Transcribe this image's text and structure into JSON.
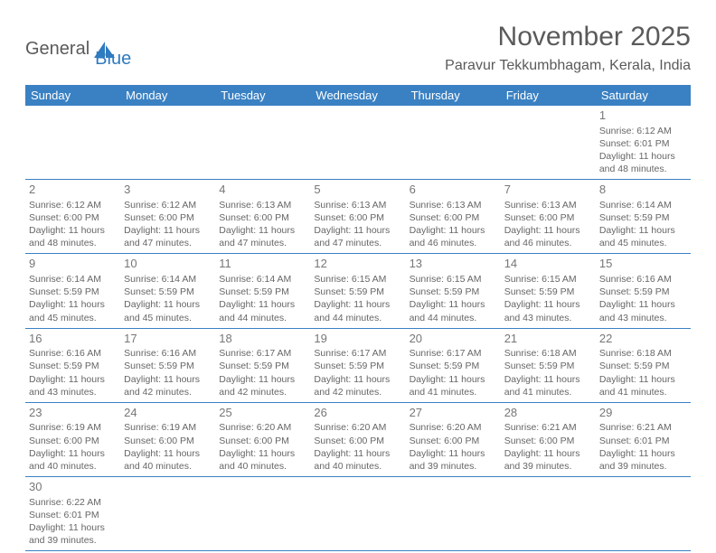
{
  "logo": {
    "part1": "General",
    "part2": "Blue"
  },
  "title": "November 2025",
  "location": "Paravur Tekkumbhagam, Kerala, India",
  "colors": {
    "header_bg": "#3a81c3",
    "header_text": "#ffffff",
    "border": "#3a81c3",
    "body_text": "#666666",
    "title_text": "#5a5a5a",
    "logo_accent": "#2f7bbf"
  },
  "weekdays": [
    "Sunday",
    "Monday",
    "Tuesday",
    "Wednesday",
    "Thursday",
    "Friday",
    "Saturday"
  ],
  "labels": {
    "sunrise": "Sunrise:",
    "sunset": "Sunset:",
    "daylight": "Daylight:"
  },
  "weeks": [
    [
      null,
      null,
      null,
      null,
      null,
      null,
      {
        "d": "1",
        "sr": "6:12 AM",
        "ss": "6:01 PM",
        "dl": "11 hours and 48 minutes."
      }
    ],
    [
      {
        "d": "2",
        "sr": "6:12 AM",
        "ss": "6:00 PM",
        "dl": "11 hours and 48 minutes."
      },
      {
        "d": "3",
        "sr": "6:12 AM",
        "ss": "6:00 PM",
        "dl": "11 hours and 47 minutes."
      },
      {
        "d": "4",
        "sr": "6:13 AM",
        "ss": "6:00 PM",
        "dl": "11 hours and 47 minutes."
      },
      {
        "d": "5",
        "sr": "6:13 AM",
        "ss": "6:00 PM",
        "dl": "11 hours and 47 minutes."
      },
      {
        "d": "6",
        "sr": "6:13 AM",
        "ss": "6:00 PM",
        "dl": "11 hours and 46 minutes."
      },
      {
        "d": "7",
        "sr": "6:13 AM",
        "ss": "6:00 PM",
        "dl": "11 hours and 46 minutes."
      },
      {
        "d": "8",
        "sr": "6:14 AM",
        "ss": "5:59 PM",
        "dl": "11 hours and 45 minutes."
      }
    ],
    [
      {
        "d": "9",
        "sr": "6:14 AM",
        "ss": "5:59 PM",
        "dl": "11 hours and 45 minutes."
      },
      {
        "d": "10",
        "sr": "6:14 AM",
        "ss": "5:59 PM",
        "dl": "11 hours and 45 minutes."
      },
      {
        "d": "11",
        "sr": "6:14 AM",
        "ss": "5:59 PM",
        "dl": "11 hours and 44 minutes."
      },
      {
        "d": "12",
        "sr": "6:15 AM",
        "ss": "5:59 PM",
        "dl": "11 hours and 44 minutes."
      },
      {
        "d": "13",
        "sr": "6:15 AM",
        "ss": "5:59 PM",
        "dl": "11 hours and 44 minutes."
      },
      {
        "d": "14",
        "sr": "6:15 AM",
        "ss": "5:59 PM",
        "dl": "11 hours and 43 minutes."
      },
      {
        "d": "15",
        "sr": "6:16 AM",
        "ss": "5:59 PM",
        "dl": "11 hours and 43 minutes."
      }
    ],
    [
      {
        "d": "16",
        "sr": "6:16 AM",
        "ss": "5:59 PM",
        "dl": "11 hours and 43 minutes."
      },
      {
        "d": "17",
        "sr": "6:16 AM",
        "ss": "5:59 PM",
        "dl": "11 hours and 42 minutes."
      },
      {
        "d": "18",
        "sr": "6:17 AM",
        "ss": "5:59 PM",
        "dl": "11 hours and 42 minutes."
      },
      {
        "d": "19",
        "sr": "6:17 AM",
        "ss": "5:59 PM",
        "dl": "11 hours and 42 minutes."
      },
      {
        "d": "20",
        "sr": "6:17 AM",
        "ss": "5:59 PM",
        "dl": "11 hours and 41 minutes."
      },
      {
        "d": "21",
        "sr": "6:18 AM",
        "ss": "5:59 PM",
        "dl": "11 hours and 41 minutes."
      },
      {
        "d": "22",
        "sr": "6:18 AM",
        "ss": "5:59 PM",
        "dl": "11 hours and 41 minutes."
      }
    ],
    [
      {
        "d": "23",
        "sr": "6:19 AM",
        "ss": "6:00 PM",
        "dl": "11 hours and 40 minutes."
      },
      {
        "d": "24",
        "sr": "6:19 AM",
        "ss": "6:00 PM",
        "dl": "11 hours and 40 minutes."
      },
      {
        "d": "25",
        "sr": "6:20 AM",
        "ss": "6:00 PM",
        "dl": "11 hours and 40 minutes."
      },
      {
        "d": "26",
        "sr": "6:20 AM",
        "ss": "6:00 PM",
        "dl": "11 hours and 40 minutes."
      },
      {
        "d": "27",
        "sr": "6:20 AM",
        "ss": "6:00 PM",
        "dl": "11 hours and 39 minutes."
      },
      {
        "d": "28",
        "sr": "6:21 AM",
        "ss": "6:00 PM",
        "dl": "11 hours and 39 minutes."
      },
      {
        "d": "29",
        "sr": "6:21 AM",
        "ss": "6:01 PM",
        "dl": "11 hours and 39 minutes."
      }
    ],
    [
      {
        "d": "30",
        "sr": "6:22 AM",
        "ss": "6:01 PM",
        "dl": "11 hours and 39 minutes."
      },
      null,
      null,
      null,
      null,
      null,
      null
    ]
  ]
}
